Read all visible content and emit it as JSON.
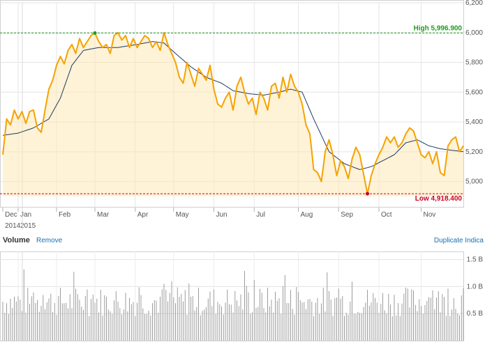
{
  "chart_data": {
    "type": "line",
    "y_ticks": [
      "6,200",
      "6,000",
      "5,800",
      "5,600",
      "5,400",
      "5,200",
      "5,000"
    ],
    "y_range": [
      4900,
      6200
    ],
    "x_labels": [
      {
        "month": "Dec",
        "year": "2014",
        "idx": 0
      },
      {
        "month": "Jan",
        "year": "2015",
        "idx": 8
      },
      {
        "month": "Feb",
        "year": "",
        "idx": 28
      },
      {
        "month": "Mar",
        "year": "",
        "idx": 48
      },
      {
        "month": "Apr",
        "year": "",
        "idx": 69
      },
      {
        "month": "May",
        "year": "",
        "idx": 89
      },
      {
        "month": "Jun",
        "year": "",
        "idx": 110
      },
      {
        "month": "Jul",
        "year": "",
        "idx": 131
      },
      {
        "month": "Aug",
        "year": "",
        "idx": 154
      },
      {
        "month": "Sep",
        "year": "",
        "idx": 175
      },
      {
        "month": "Oct",
        "year": "",
        "idx": 196
      },
      {
        "month": "Nov",
        "year": "",
        "idx": 218
      }
    ],
    "high": {
      "label": "High 5,996.900",
      "value": 5996.9,
      "idx": 48
    },
    "low": {
      "label": "Low 4,918.400",
      "value": 4918.4,
      "idx": 190
    },
    "price_keyframes": [
      [
        0,
        5180
      ],
      [
        2,
        5420
      ],
      [
        4,
        5380
      ],
      [
        6,
        5480
      ],
      [
        8,
        5420
      ],
      [
        10,
        5470
      ],
      [
        12,
        5390
      ],
      [
        14,
        5470
      ],
      [
        16,
        5480
      ],
      [
        18,
        5360
      ],
      [
        20,
        5330
      ],
      [
        22,
        5480
      ],
      [
        24,
        5620
      ],
      [
        26,
        5680
      ],
      [
        28,
        5780
      ],
      [
        30,
        5840
      ],
      [
        32,
        5790
      ],
      [
        34,
        5880
      ],
      [
        36,
        5920
      ],
      [
        38,
        5860
      ],
      [
        40,
        5960
      ],
      [
        42,
        5900
      ],
      [
        44,
        5940
      ],
      [
        46,
        5980
      ],
      [
        48,
        5996
      ],
      [
        50,
        5940
      ],
      [
        52,
        5900
      ],
      [
        54,
        5920
      ],
      [
        56,
        5860
      ],
      [
        58,
        5980
      ],
      [
        60,
        6000
      ],
      [
        62,
        5950
      ],
      [
        64,
        5980
      ],
      [
        66,
        5900
      ],
      [
        68,
        5960
      ],
      [
        70,
        5900
      ],
      [
        72,
        5940
      ],
      [
        74,
        5980
      ],
      [
        76,
        5960
      ],
      [
        78,
        5900
      ],
      [
        80,
        5940
      ],
      [
        82,
        5880
      ],
      [
        84,
        6000
      ],
      [
        86,
        5920
      ],
      [
        88,
        5860
      ],
      [
        90,
        5800
      ],
      [
        92,
        5700
      ],
      [
        94,
        5660
      ],
      [
        96,
        5800
      ],
      [
        98,
        5720
      ],
      [
        100,
        5640
      ],
      [
        102,
        5760
      ],
      [
        104,
        5720
      ],
      [
        106,
        5680
      ],
      [
        108,
        5780
      ],
      [
        110,
        5620
      ],
      [
        112,
        5520
      ],
      [
        114,
        5500
      ],
      [
        116,
        5560
      ],
      [
        118,
        5600
      ],
      [
        120,
        5480
      ],
      [
        122,
        5640
      ],
      [
        124,
        5700
      ],
      [
        126,
        5600
      ],
      [
        128,
        5520
      ],
      [
        130,
        5560
      ],
      [
        132,
        5450
      ],
      [
        134,
        5600
      ],
      [
        136,
        5560
      ],
      [
        138,
        5480
      ],
      [
        140,
        5640
      ],
      [
        142,
        5660
      ],
      [
        144,
        5560
      ],
      [
        146,
        5700
      ],
      [
        148,
        5600
      ],
      [
        150,
        5720
      ],
      [
        152,
        5640
      ],
      [
        154,
        5600
      ],
      [
        156,
        5520
      ],
      [
        158,
        5380
      ],
      [
        160,
        5320
      ],
      [
        162,
        5080
      ],
      [
        164,
        5060
      ],
      [
        166,
        5000
      ],
      [
        168,
        5200
      ],
      [
        170,
        5280
      ],
      [
        172,
        5180
      ],
      [
        174,
        5040
      ],
      [
        176,
        5140
      ],
      [
        178,
        5100
      ],
      [
        180,
        5020
      ],
      [
        182,
        5150
      ],
      [
        184,
        5230
      ],
      [
        186,
        5180
      ],
      [
        188,
        5050
      ],
      [
        190,
        4918
      ],
      [
        192,
        5040
      ],
      [
        194,
        5120
      ],
      [
        196,
        5180
      ],
      [
        198,
        5230
      ],
      [
        200,
        5300
      ],
      [
        202,
        5260
      ],
      [
        204,
        5300
      ],
      [
        206,
        5230
      ],
      [
        208,
        5260
      ],
      [
        210,
        5320
      ],
      [
        212,
        5360
      ],
      [
        214,
        5340
      ],
      [
        216,
        5260
      ],
      [
        218,
        5180
      ],
      [
        220,
        5160
      ],
      [
        222,
        5200
      ],
      [
        224,
        5120
      ],
      [
        226,
        5200
      ],
      [
        228,
        5060
      ],
      [
        230,
        5040
      ],
      [
        232,
        5240
      ],
      [
        234,
        5280
      ],
      [
        236,
        5300
      ],
      [
        238,
        5200
      ],
      [
        240,
        5240
      ]
    ],
    "ma_keyframes": [
      [
        0,
        5310
      ],
      [
        8,
        5325
      ],
      [
        16,
        5360
      ],
      [
        24,
        5420
      ],
      [
        30,
        5560
      ],
      [
        36,
        5780
      ],
      [
        42,
        5880
      ],
      [
        50,
        5900
      ],
      [
        60,
        5900
      ],
      [
        70,
        5920
      ],
      [
        78,
        5940
      ],
      [
        84,
        5930
      ],
      [
        90,
        5860
      ],
      [
        98,
        5770
      ],
      [
        106,
        5700
      ],
      [
        114,
        5660
      ],
      [
        120,
        5610
      ],
      [
        128,
        5590
      ],
      [
        136,
        5580
      ],
      [
        144,
        5600
      ],
      [
        150,
        5620
      ],
      [
        156,
        5600
      ],
      [
        162,
        5420
      ],
      [
        170,
        5200
      ],
      [
        178,
        5120
      ],
      [
        186,
        5080
      ],
      [
        192,
        5100
      ],
      [
        198,
        5140
      ],
      [
        204,
        5180
      ],
      [
        210,
        5260
      ],
      [
        216,
        5280
      ],
      [
        222,
        5240
      ],
      [
        228,
        5220
      ],
      [
        234,
        5210
      ],
      [
        240,
        5200
      ]
    ],
    "volume": {
      "y_ticks": [
        "1.5 B",
        "1.0 B",
        "0.5 B"
      ],
      "y_range": [
        0,
        1.65
      ],
      "values": []
    }
  },
  "volume_header": {
    "title": "Volume",
    "remove_label": "Remove"
  },
  "duplicate_label": "Duplicate Indica",
  "colors": {
    "price": "#f5a300",
    "ma": "#1f3a60",
    "fill": "#fde7b6",
    "high": "#1a9e1a",
    "low": "#c8001c",
    "grid": "#e3e3e3",
    "volume": "#9c9c9c"
  }
}
